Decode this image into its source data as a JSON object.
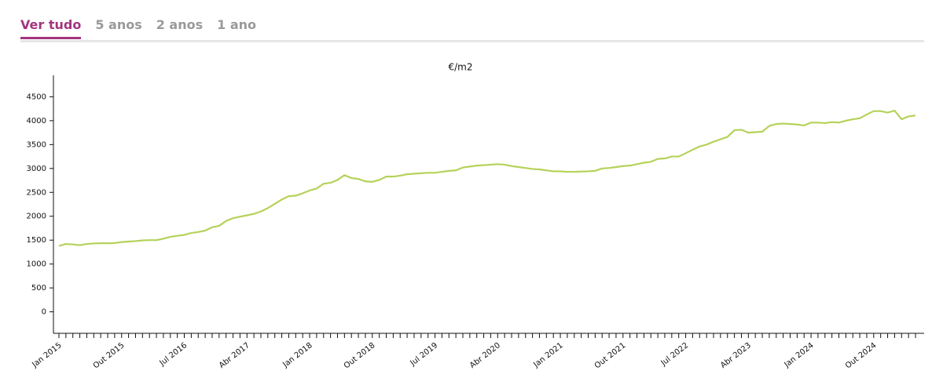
{
  "tabs": [
    "Ver tudo",
    "5 anos",
    "2 anos",
    "1 ano"
  ],
  "active_tab": 0,
  "chart_data": {
    "type": "line",
    "ylabel": "€/m2",
    "categories": [
      "Jan 2015",
      null,
      null,
      null,
      null,
      null,
      null,
      null,
      null,
      "Out 2015",
      null,
      null,
      null,
      null,
      null,
      null,
      null,
      null,
      "Jul 2016",
      null,
      null,
      null,
      null,
      null,
      null,
      null,
      null,
      "Abr 2017",
      null,
      null,
      null,
      null,
      null,
      null,
      null,
      null,
      "Jan 2018",
      null,
      null,
      null,
      null,
      null,
      null,
      null,
      null,
      "Out 2018",
      null,
      null,
      null,
      null,
      null,
      null,
      null,
      null,
      "Jul 2019",
      null,
      null,
      null,
      null,
      null,
      null,
      null,
      null,
      "Abr 2020",
      null,
      null,
      null,
      null,
      null,
      null,
      null,
      null,
      "Jan 2021",
      null,
      null,
      null,
      null,
      null,
      null,
      null,
      null,
      "Out 2021",
      null,
      null,
      null,
      null,
      null,
      null,
      null,
      null,
      "Jul 2022",
      null,
      null,
      null,
      null,
      null,
      null,
      null,
      null,
      "Abr 2023",
      null,
      null,
      null,
      null,
      null,
      null,
      null,
      null,
      "Jan 2024",
      null,
      null,
      null,
      null,
      null,
      null,
      null,
      null,
      "Out 2024",
      null,
      null,
      null,
      null,
      null,
      null
    ],
    "series": [
      {
        "color": "#b5d25a",
        "values": [
          1380,
          1420,
          1410,
          1395,
          1420,
          1430,
          1435,
          1435,
          1440,
          1460,
          1470,
          1480,
          1495,
          1500,
          1500,
          1530,
          1570,
          1590,
          1610,
          1650,
          1670,
          1700,
          1770,
          1800,
          1900,
          1960,
          1990,
          2020,
          2050,
          2100,
          2170,
          2260,
          2350,
          2420,
          2430,
          2480,
          2540,
          2580,
          2680,
          2700,
          2760,
          2860,
          2800,
          2780,
          2730,
          2720,
          2760,
          2830,
          2830,
          2850,
          2880,
          2890,
          2900,
          2910,
          2910,
          2930,
          2950,
          2960,
          3020,
          3040,
          3060,
          3070,
          3080,
          3090,
          3080,
          3050,
          3030,
          3010,
          2990,
          2980,
          2960,
          2940,
          2940,
          2930,
          2930,
          2935,
          2940,
          2950,
          3000,
          3010,
          3030,
          3050,
          3060,
          3090,
          3120,
          3140,
          3200,
          3210,
          3250,
          3250,
          3320,
          3390,
          3460,
          3500,
          3560,
          3610,
          3660,
          3800,
          3810,
          3750,
          3760,
          3770,
          3890,
          3930,
          3940,
          3930,
          3920,
          3900,
          3960,
          3960,
          3950,
          3970,
          3960,
          4000,
          4030,
          4050,
          4130,
          4200,
          4200,
          4170,
          4210,
          4030,
          4090,
          4110
        ]
      }
    ],
    "ylim": [
      -450,
      4950
    ],
    "yticks": [
      0,
      500,
      1000,
      1500,
      2000,
      2500,
      3000,
      3500,
      4000,
      4500
    ],
    "grid": false
  }
}
